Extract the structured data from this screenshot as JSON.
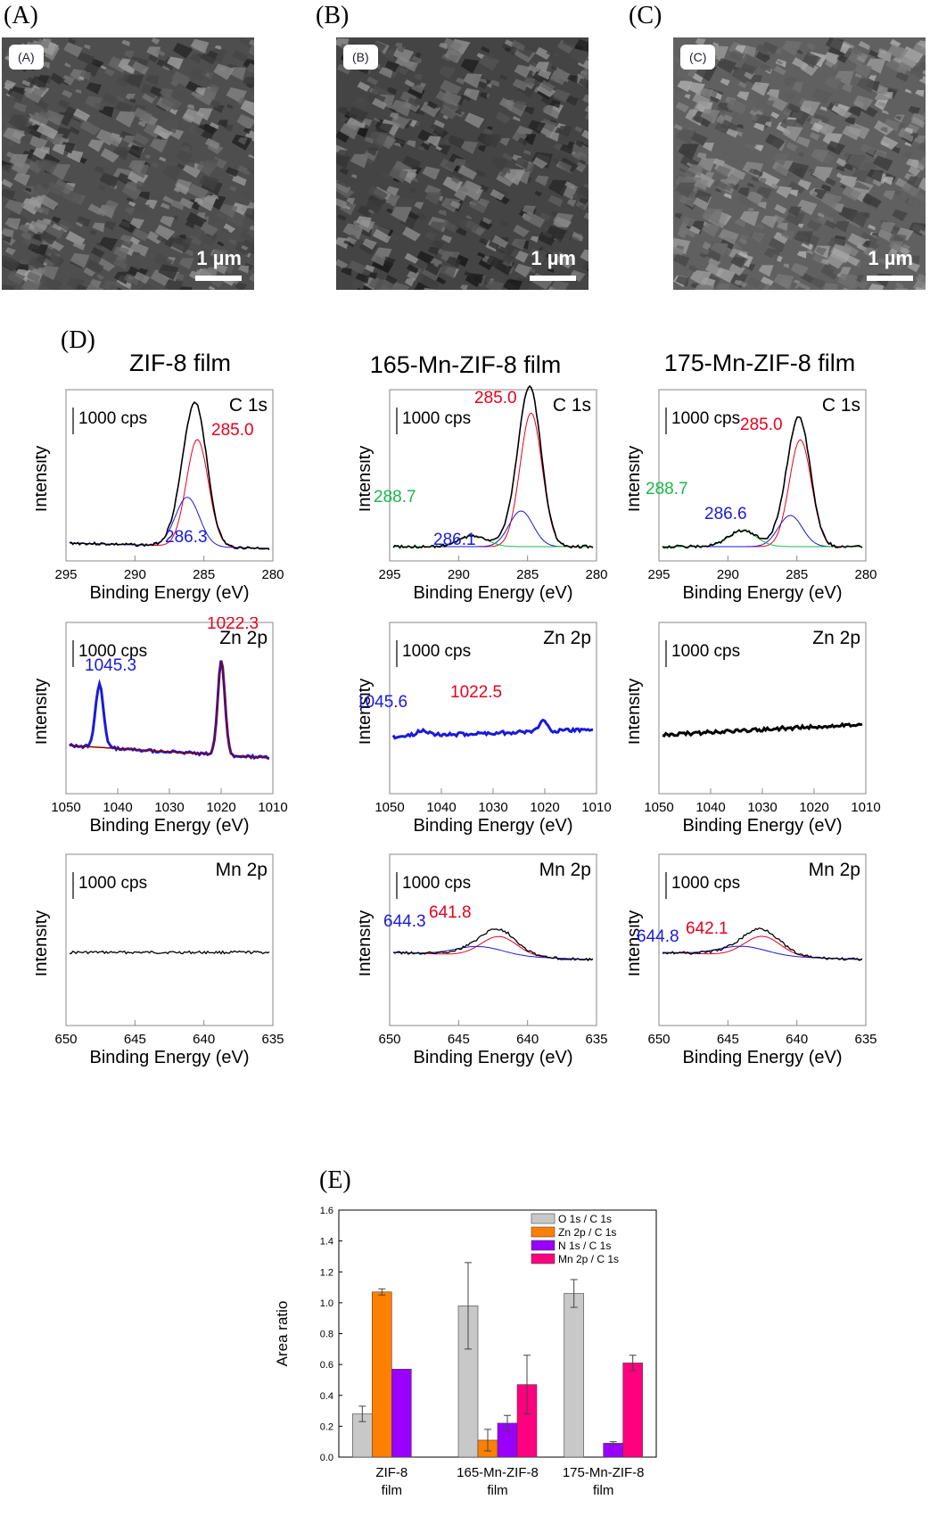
{
  "panels": {
    "A": {
      "letter": "(A)",
      "label": "(A)",
      "scale": "1 µm"
    },
    "B": {
      "letter": "(B)",
      "label": "(B)",
      "scale": "1 µm"
    },
    "C": {
      "letter": "(C)",
      "label": "(C)",
      "scale": "1 µm"
    },
    "D": {
      "letter": "(D)"
    },
    "E": {
      "letter": "(E)"
    }
  },
  "columns": [
    "ZIF-8 film",
    "165-Mn-ZIF-8 film",
    "175-Mn-ZIF-8 film"
  ],
  "xps_common": {
    "ylabel": "Intensity",
    "xlabel": "Binding Energy (eV)",
    "scale_label": "1000 cps"
  },
  "xps_rows": [
    {
      "element": "C 1s",
      "xticks": [
        "295",
        "290",
        "285",
        "280"
      ]
    },
    {
      "element": "Zn 2p",
      "xticks": [
        "1050",
        "1040",
        "1030",
        "1020",
        "1010"
      ]
    },
    {
      "element": "Mn 2p",
      "xticks": [
        "650",
        "645",
        "640",
        "635"
      ]
    }
  ],
  "xps_peaks": [
    [
      [
        {
          "text": "285.0",
          "color": "#e8001c"
        },
        {
          "text": "286.3",
          "color": "#1a1adb"
        }
      ],
      [
        {
          "text": "1022.3",
          "color": "#e8001c"
        },
        {
          "text": "1045.3",
          "color": "#1a1adb"
        }
      ],
      []
    ],
    [
      [
        {
          "text": "285.0",
          "color": "#e8001c"
        },
        {
          "text": "288.7",
          "color": "#18b84a"
        },
        {
          "text": "286.1",
          "color": "#1a1adb"
        }
      ],
      [
        {
          "text": "1045.6",
          "color": "#1a1adb"
        },
        {
          "text": "1022.5",
          "color": "#e8001c"
        }
      ],
      [
        {
          "text": "644.3",
          "color": "#1a1adb"
        },
        {
          "text": "641.8",
          "color": "#e8001c"
        }
      ]
    ],
    [
      [
        {
          "text": "285.0",
          "color": "#e8001c"
        },
        {
          "text": "288.7",
          "color": "#18b84a"
        },
        {
          "text": "286.6",
          "color": "#1a1adb"
        }
      ],
      [],
      [
        {
          "text": "644.8",
          "color": "#1a1adb"
        },
        {
          "text": "642.1",
          "color": "#e8001c"
        }
      ]
    ]
  ],
  "chart_data": {
    "type": "bar",
    "title": "",
    "xlabel": "",
    "ylabel": "Area ratio",
    "ylim": [
      0,
      1.6
    ],
    "yticks": [
      "0.0",
      "0.2",
      "0.4",
      "0.6",
      "0.8",
      "1.0",
      "1.2",
      "1.4",
      "1.6"
    ],
    "categories": [
      [
        "ZIF-8",
        "film"
      ],
      [
        "165-Mn-ZIF-8",
        "film"
      ],
      [
        "175-Mn-ZIF-8",
        "film"
      ]
    ],
    "legend_position": "top-right",
    "series": [
      {
        "name": "O 1s / C 1s",
        "color": "#c8c8c8",
        "values": [
          0.28,
          0.98,
          1.06
        ],
        "errors": [
          0.05,
          0.28,
          0.09
        ]
      },
      {
        "name": "Zn 2p / C 1s",
        "color": "#ff8000",
        "values": [
          1.07,
          0.11,
          0.0
        ],
        "errors": [
          0.02,
          0.07,
          0.0
        ]
      },
      {
        "name": "N 1s / C 1s",
        "color": "#9900ff",
        "values": [
          0.57,
          0.22,
          0.09
        ],
        "errors": [
          0.0,
          0.05,
          0.01
        ]
      },
      {
        "name": "Mn 2p / C 1s",
        "color": "#ff007f",
        "values": [
          0.0,
          0.47,
          0.61
        ],
        "errors": [
          0.0,
          0.19,
          0.05
        ]
      }
    ]
  }
}
